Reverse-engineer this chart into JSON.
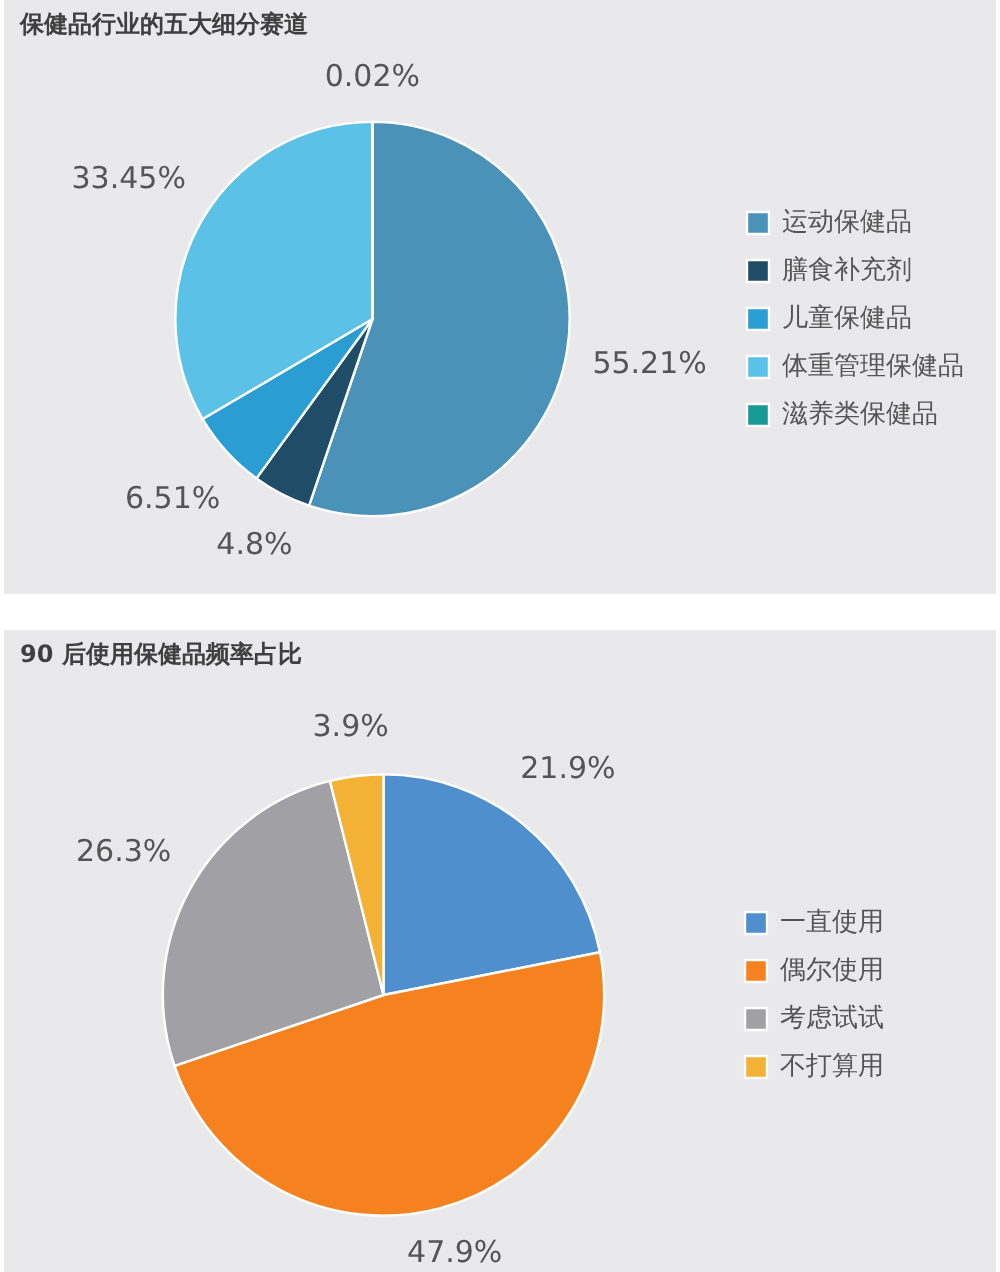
{
  "chart_data": [
    {
      "type": "pie",
      "title": "保健品行业的五大细分赛道",
      "categories": [
        "运动保健品",
        "膳食补充剂",
        "儿童保健品",
        "体重管理保健品",
        "滋养类保健品"
      ],
      "values": [
        55.21,
        4.8,
        6.51,
        33.45,
        0.02
      ],
      "colors": [
        "#4b92b8",
        "#1f4d68",
        "#2a9dd2",
        "#5cc1e6",
        "#179a96"
      ],
      "value_labels": [
        "55.21%",
        "4.8%",
        "6.51%",
        "33.45%",
        "0.02%"
      ],
      "legend": "right"
    },
    {
      "type": "pie",
      "title": "90 后使用保健品频率占比",
      "categories": [
        "一直使用",
        "偶尔使用",
        "考虑试试",
        "不打算用"
      ],
      "values": [
        21.9,
        47.9,
        26.3,
        3.9
      ],
      "colors": [
        "#4f8fcd",
        "#f5821f",
        "#a0a0a5",
        "#f3b136"
      ],
      "value_labels": [
        "21.9%",
        "47.9%",
        "26.3%",
        "3.9%"
      ],
      "legend": "right"
    }
  ]
}
